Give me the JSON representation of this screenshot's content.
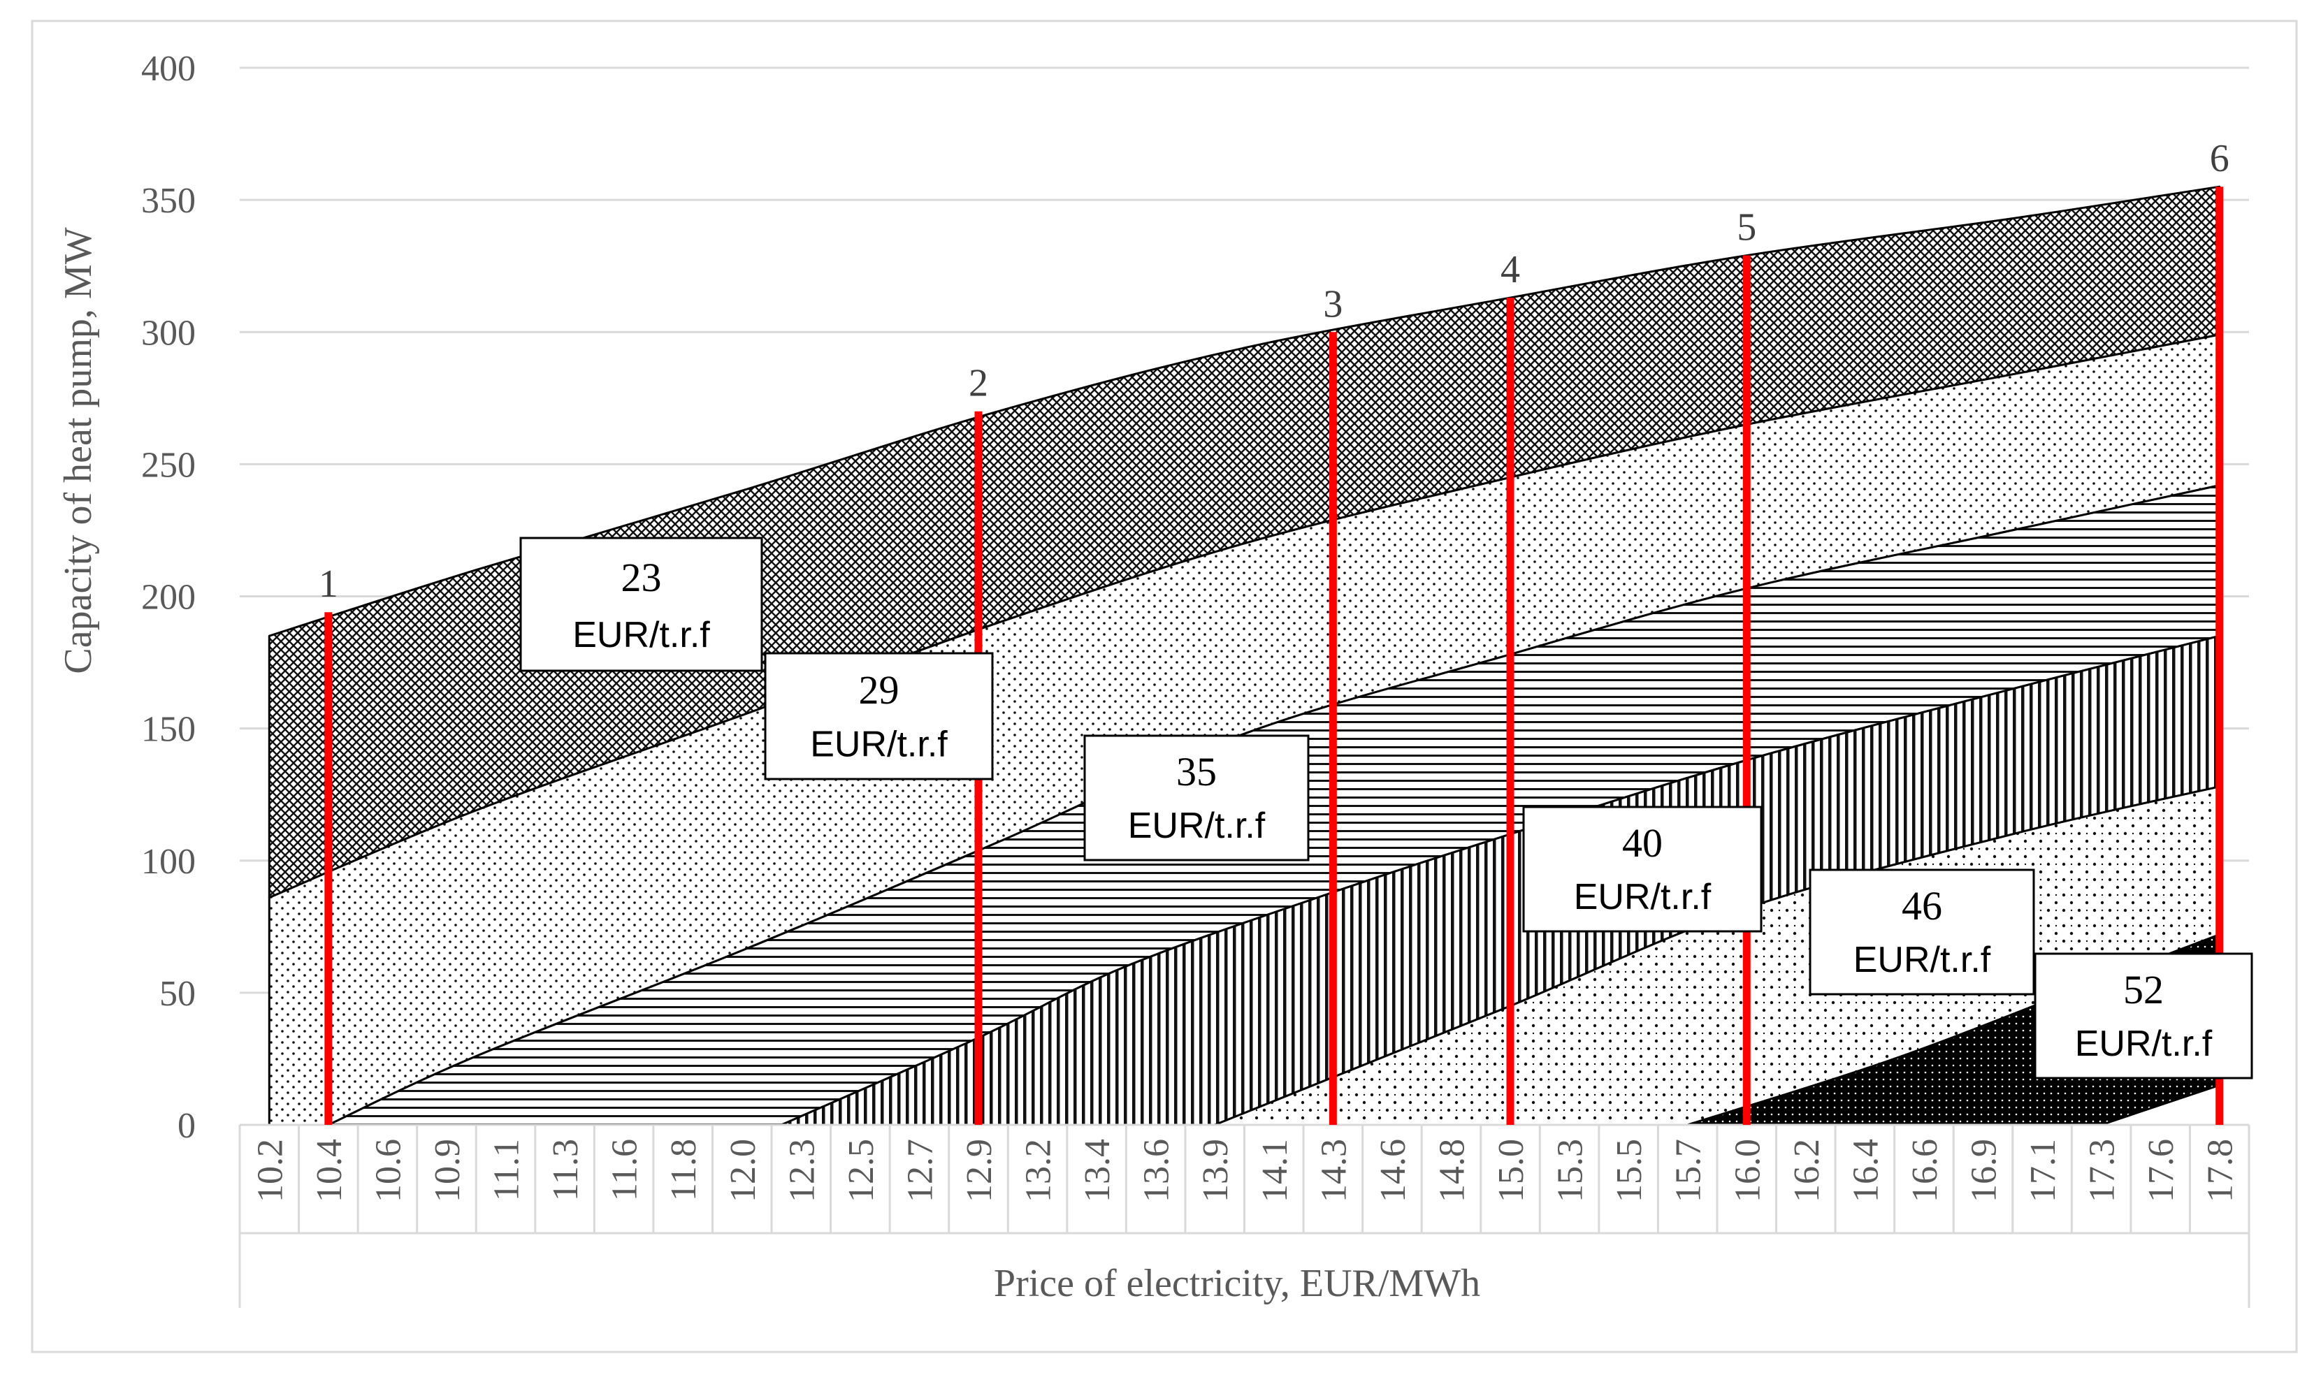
{
  "chart_data": {
    "type": "area",
    "title": "",
    "xlabel": "Price of electricity, EUR/MWh",
    "ylabel": "Capacity of heat pump, MW",
    "ylim": [
      0,
      400
    ],
    "yticks": [
      0,
      50,
      100,
      150,
      200,
      250,
      300,
      350,
      400
    ],
    "categories": [
      "10.2",
      "10.4",
      "10.6",
      "10.9",
      "11.1",
      "11.3",
      "11.6",
      "11.8",
      "12.0",
      "12.3",
      "12.5",
      "12.7",
      "12.9",
      "13.2",
      "13.4",
      "13.6",
      "13.9",
      "14.1",
      "14.3",
      "14.6",
      "14.8",
      "15.0",
      "15.3",
      "15.5",
      "15.7",
      "16.0",
      "16.2",
      "16.4",
      "16.6",
      "16.9",
      "17.1",
      "17.3",
      "17.6",
      "17.8"
    ],
    "legend": "none",
    "grid": "horizontal",
    "colors": {
      "scenario_line": "#ff0000",
      "grid": "#d9d9d9",
      "text": "#595959"
    },
    "series": [
      {
        "name": "23 EUR/t.r.f",
        "num": "23",
        "unit": "EUR/t.r.f",
        "pattern": "crosshatch",
        "upper": [
          [
            10.2,
            185
          ],
          [
            11.0,
            210
          ],
          [
            12.0,
            240
          ],
          [
            13.0,
            270
          ],
          [
            14.0,
            294
          ],
          [
            15.0,
            313
          ],
          [
            16.0,
            329
          ],
          [
            17.0,
            343
          ],
          [
            17.8,
            355
          ]
        ],
        "lower": [
          [
            10.2,
            86
          ],
          [
            11.0,
            119
          ],
          [
            12.0,
            155
          ],
          [
            13.0,
            190
          ],
          [
            14.0,
            220
          ],
          [
            15.0,
            245
          ],
          [
            16.0,
            265
          ],
          [
            17.0,
            284
          ],
          [
            17.8,
            299
          ]
        ]
      },
      {
        "name": "29 EUR/t.r.f",
        "num": "29",
        "unit": "EUR/t.r.f",
        "pattern": "dots",
        "upper": [
          [
            10.2,
            86
          ],
          [
            11.0,
            119
          ],
          [
            12.0,
            155
          ],
          [
            13.0,
            190
          ],
          [
            14.0,
            220
          ],
          [
            15.0,
            245
          ],
          [
            16.0,
            265
          ],
          [
            17.0,
            284
          ],
          [
            17.8,
            299
          ]
        ],
        "lower": [
          [
            10.4,
            0
          ],
          [
            11.0,
            26
          ],
          [
            12.0,
            66
          ],
          [
            13.0,
            107
          ],
          [
            14.0,
            148
          ],
          [
            15.0,
            178
          ],
          [
            16.0,
            203
          ],
          [
            17.0,
            225
          ],
          [
            17.8,
            242
          ]
        ]
      },
      {
        "name": "35 EUR/t.r.f",
        "num": "35",
        "unit": "EUR/t.r.f",
        "pattern": "horizontal",
        "upper": [
          [
            10.4,
            0
          ],
          [
            11.0,
            26
          ],
          [
            12.0,
            66
          ],
          [
            13.0,
            107
          ],
          [
            14.0,
            148
          ],
          [
            15.0,
            178
          ],
          [
            16.0,
            203
          ],
          [
            17.0,
            225
          ],
          [
            17.8,
            242
          ]
        ],
        "lower": [
          [
            12.2,
            0
          ],
          [
            12.9,
            33
          ],
          [
            13.5,
            60
          ],
          [
            14.3,
            88
          ],
          [
            15.0,
            110
          ],
          [
            16.0,
            138
          ],
          [
            17.0,
            165
          ],
          [
            17.8,
            185
          ]
        ]
      },
      {
        "name": "40 EUR/t.r.f",
        "num": "40",
        "unit": "EUR/t.r.f",
        "pattern": "vertical",
        "upper": [
          [
            12.2,
            0
          ],
          [
            12.9,
            33
          ],
          [
            13.5,
            60
          ],
          [
            14.3,
            88
          ],
          [
            15.0,
            110
          ],
          [
            16.0,
            138
          ],
          [
            17.0,
            165
          ],
          [
            17.8,
            185
          ]
        ],
        "lower": [
          [
            13.9,
            0
          ],
          [
            14.3,
            18
          ],
          [
            15.0,
            45
          ],
          [
            16.0,
            82
          ],
          [
            17.0,
            110
          ],
          [
            17.8,
            128
          ]
        ]
      },
      {
        "name": "46 EUR/t.r.f",
        "num": "46",
        "unit": "EUR/t.r.f",
        "pattern": "sparse-dots",
        "upper": [
          [
            13.9,
            0
          ],
          [
            14.3,
            18
          ],
          [
            15.0,
            45
          ],
          [
            16.0,
            82
          ],
          [
            17.0,
            110
          ],
          [
            17.8,
            128
          ]
        ],
        "lower": [
          [
            15.7,
            0
          ],
          [
            16.5,
            25
          ],
          [
            17.3,
            55
          ],
          [
            17.8,
            72
          ]
        ]
      },
      {
        "name": "52 EUR/t.r.f",
        "num": "52",
        "unit": "EUR/t.r.f",
        "pattern": "dense",
        "upper": [
          [
            15.7,
            0
          ],
          [
            16.5,
            25
          ],
          [
            17.3,
            55
          ],
          [
            17.8,
            72
          ]
        ],
        "lower": [
          [
            17.3,
            0
          ],
          [
            17.8,
            15
          ]
        ]
      }
    ],
    "scenarios": [
      {
        "label": "1",
        "x": 10.4,
        "top": 194
      },
      {
        "label": "2",
        "x": 12.9,
        "top": 270
      },
      {
        "label": "3",
        "x": 14.3,
        "top": 300
      },
      {
        "label": "4",
        "x": 15.0,
        "top": 313
      },
      {
        "label": "5",
        "x": 16.0,
        "top": 329
      },
      {
        "label": "6",
        "x": 17.8,
        "top": 355
      }
    ]
  }
}
